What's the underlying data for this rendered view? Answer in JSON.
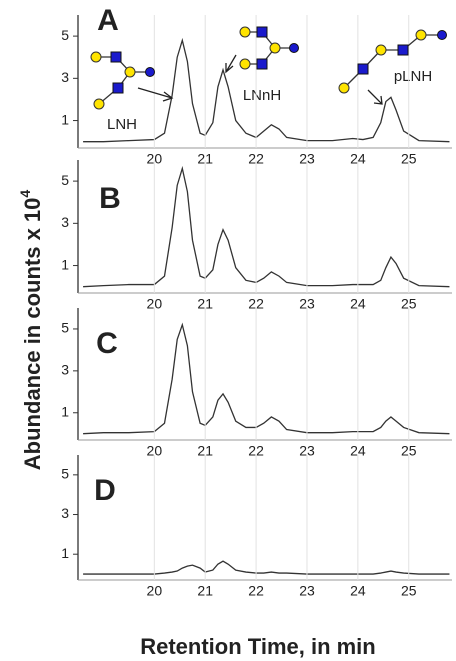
{
  "chart_data": [
    {
      "type": "line",
      "panel_label": "A",
      "y_label": "Abundance in counts  x 10",
      "y_label_superscript": "4",
      "annotations": [
        "LNH",
        "LNnH",
        "pLNH"
      ],
      "x": [
        18.6,
        19.0,
        19.5,
        20.0,
        20.2,
        20.35,
        20.45,
        20.55,
        20.65,
        20.75,
        20.9,
        21.0,
        21.15,
        21.25,
        21.35,
        21.45,
        21.6,
        21.8,
        22.0,
        22.15,
        22.3,
        22.45,
        22.6,
        23.0,
        23.5,
        23.9,
        24.1,
        24.3,
        24.45,
        24.55,
        24.65,
        24.75,
        24.9,
        25.2,
        25.8
      ],
      "series": [
        {
          "color": "#333333",
          "values": [
            0,
            0,
            0.05,
            0.1,
            0.4,
            2.2,
            4.0,
            4.8,
            3.8,
            1.8,
            0.4,
            0.3,
            0.9,
            2.6,
            3.4,
            2.6,
            1.0,
            0.4,
            0.2,
            0.5,
            0.8,
            0.6,
            0.2,
            0.05,
            0.05,
            0.15,
            0.1,
            0.2,
            0.9,
            1.9,
            2.1,
            1.5,
            0.5,
            0.05,
            0
          ]
        }
      ],
      "xlim": [
        18.5,
        25.85
      ],
      "xticks": [
        20,
        21,
        22,
        23,
        24,
        25
      ],
      "ylim": [
        -0.3,
        6
      ],
      "yticks": [
        1,
        3,
        5
      ],
      "grid": true
    },
    {
      "type": "line",
      "panel_label": "B",
      "x": [
        18.6,
        19.0,
        19.5,
        20.0,
        20.2,
        20.35,
        20.45,
        20.55,
        20.65,
        20.75,
        20.9,
        21.0,
        21.15,
        21.25,
        21.35,
        21.45,
        21.6,
        21.8,
        22.0,
        22.15,
        22.3,
        22.45,
        22.6,
        23.0,
        23.5,
        23.9,
        24.1,
        24.3,
        24.45,
        24.55,
        24.65,
        24.75,
        24.9,
        25.2,
        25.8
      ],
      "series": [
        {
          "color": "#333333",
          "values": [
            0,
            0.05,
            0.1,
            0.1,
            0.5,
            2.8,
            4.8,
            5.6,
            4.5,
            2.2,
            0.5,
            0.4,
            0.8,
            2.0,
            2.7,
            2.2,
            0.9,
            0.3,
            0.2,
            0.4,
            0.7,
            0.5,
            0.2,
            0.05,
            0.05,
            0.1,
            0.1,
            0.1,
            0.3,
            0.9,
            1.4,
            1.1,
            0.4,
            0.05,
            0
          ]
        }
      ],
      "xlim": [
        18.5,
        25.85
      ],
      "xticks": [
        20,
        21,
        22,
        23,
        24,
        25
      ],
      "ylim": [
        -0.3,
        6
      ],
      "yticks": [
        1,
        3,
        5
      ],
      "grid": true
    },
    {
      "type": "line",
      "panel_label": "C",
      "x": [
        18.6,
        19.0,
        19.5,
        20.0,
        20.2,
        20.35,
        20.45,
        20.55,
        20.65,
        20.75,
        20.9,
        21.0,
        21.15,
        21.25,
        21.35,
        21.45,
        21.6,
        21.8,
        22.0,
        22.15,
        22.3,
        22.45,
        22.6,
        23.0,
        23.5,
        23.9,
        24.1,
        24.3,
        24.45,
        24.55,
        24.65,
        24.75,
        24.9,
        25.2,
        25.8
      ],
      "series": [
        {
          "color": "#333333",
          "values": [
            0,
            0.05,
            0.05,
            0.1,
            0.5,
            2.6,
            4.5,
            5.2,
            4.2,
            2.0,
            0.5,
            0.4,
            0.8,
            1.6,
            1.9,
            1.5,
            0.6,
            0.3,
            0.3,
            0.5,
            0.8,
            0.6,
            0.2,
            0.05,
            0.05,
            0.1,
            0.1,
            0.1,
            0.3,
            0.6,
            0.8,
            0.6,
            0.3,
            0.05,
            0
          ]
        }
      ],
      "xlim": [
        18.5,
        25.85
      ],
      "xticks": [
        20,
        21,
        22,
        23,
        24,
        25
      ],
      "ylim": [
        -0.3,
        6
      ],
      "yticks": [
        1,
        3,
        5
      ],
      "grid": true
    },
    {
      "type": "line",
      "panel_label": "D",
      "x_label": "Retention Time, in min",
      "x": [
        18.6,
        19.0,
        19.5,
        20.0,
        20.2,
        20.35,
        20.45,
        20.55,
        20.65,
        20.75,
        20.9,
        21.0,
        21.15,
        21.25,
        21.35,
        21.45,
        21.6,
        21.8,
        22.0,
        22.15,
        22.3,
        22.45,
        22.6,
        23.0,
        23.5,
        23.9,
        24.1,
        24.3,
        24.45,
        24.55,
        24.65,
        24.75,
        24.9,
        25.2,
        25.8
      ],
      "series": [
        {
          "color": "#333333",
          "values": [
            0,
            0,
            0,
            0,
            0.05,
            0.1,
            0.15,
            0.3,
            0.4,
            0.45,
            0.3,
            0.1,
            0.2,
            0.5,
            0.65,
            0.5,
            0.2,
            0.1,
            0.05,
            0.05,
            0.1,
            0.05,
            0.05,
            0,
            0,
            0,
            0,
            0,
            0.05,
            0.1,
            0.15,
            0.1,
            0.05,
            0,
            0
          ]
        }
      ],
      "xlim": [
        18.5,
        25.85
      ],
      "xticks": [
        20,
        21,
        22,
        23,
        24,
        25
      ],
      "ylim": [
        -0.3,
        6
      ],
      "yticks": [
        1,
        3,
        5
      ],
      "grid": true
    }
  ]
}
